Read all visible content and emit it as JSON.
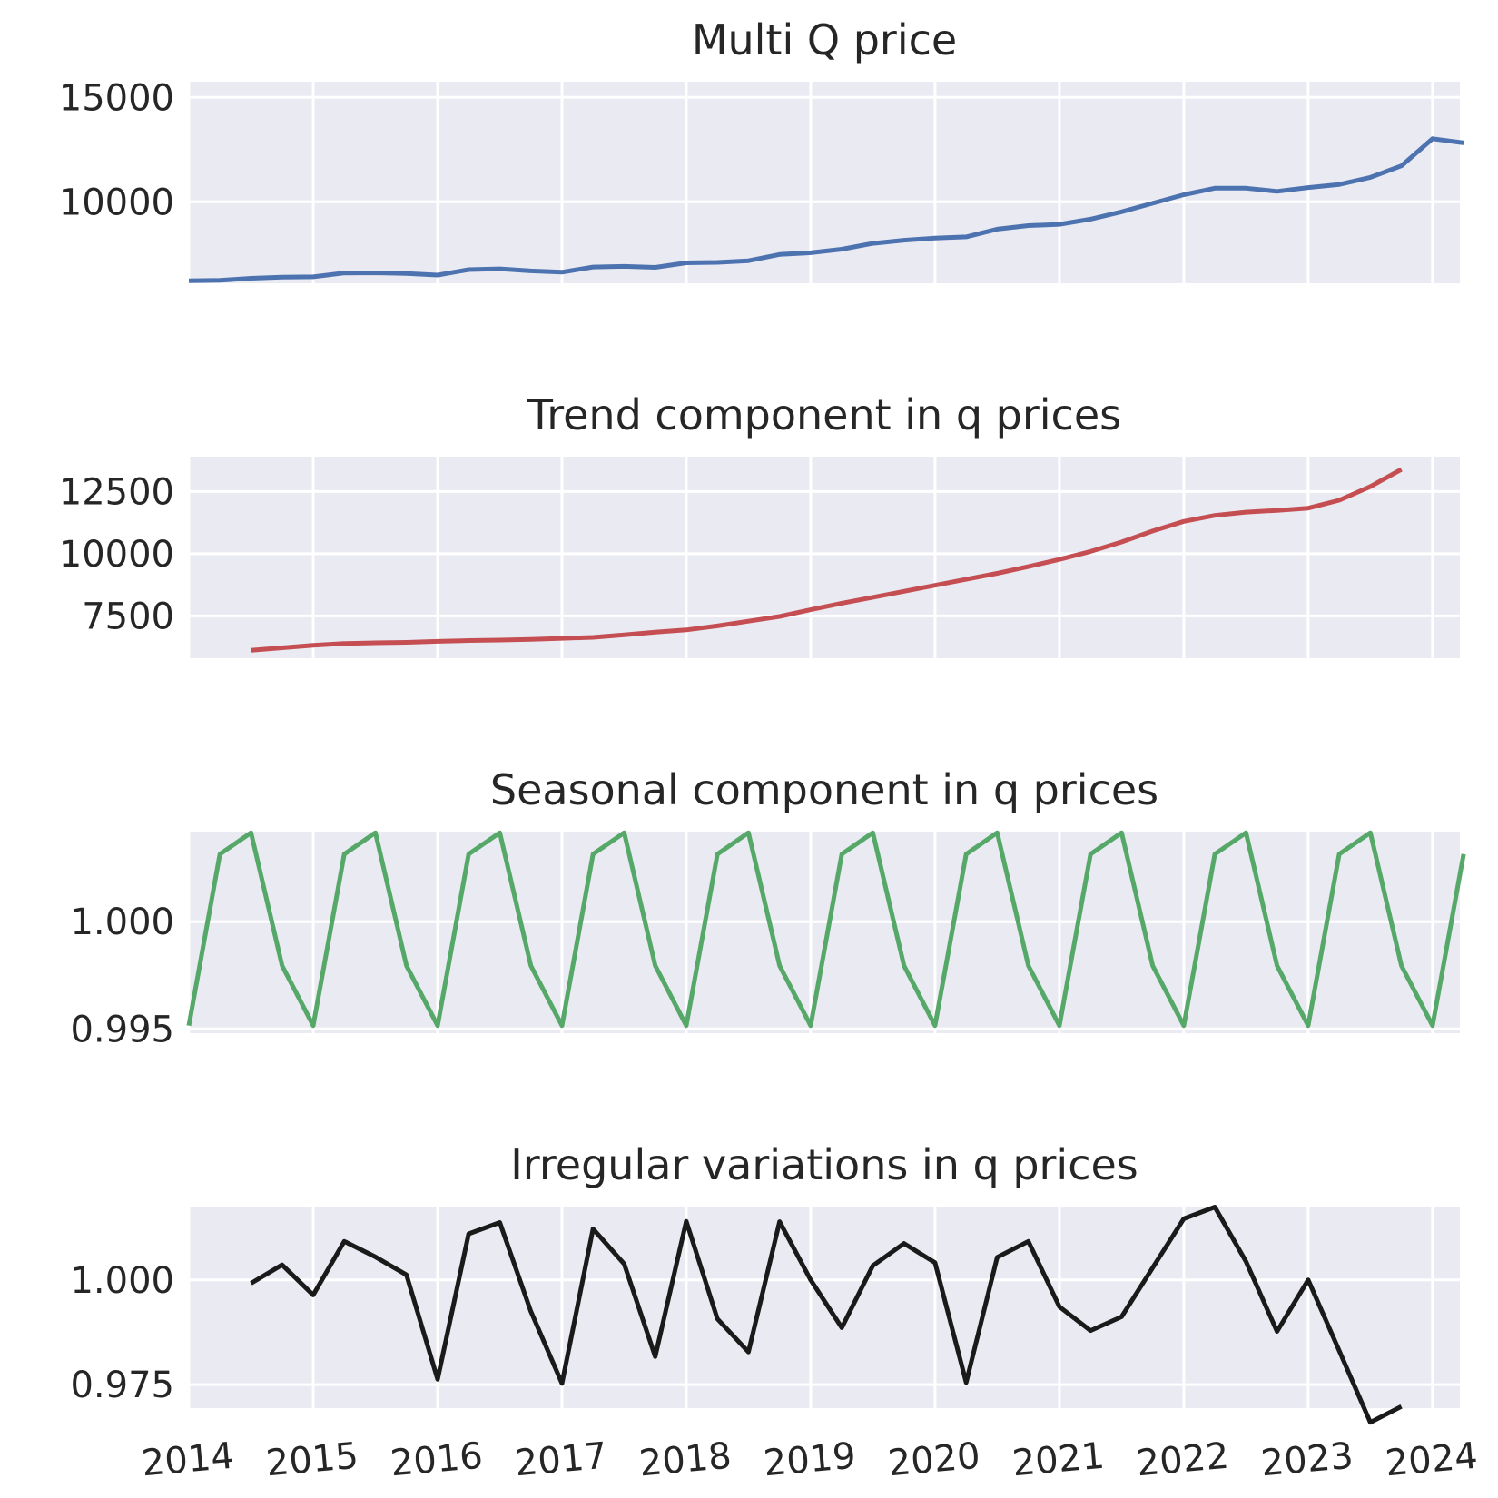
{
  "chart_data": [
    {
      "type": "line",
      "title": "Multi Q price",
      "xlabel": "",
      "ylabel": "",
      "xlim": [
        2014.0,
        2024.22
      ],
      "ylim": [
        6100,
        15750
      ],
      "yticks": [
        10000,
        15000
      ],
      "ytick_labels": [
        "10000",
        "15000"
      ],
      "grid": true,
      "color": "#4c72b0",
      "series": [
        {
          "x": [
            2014.0,
            2014.25,
            2014.5,
            2014.75,
            2015.0,
            2015.25,
            2015.5,
            2015.75,
            2016.0,
            2016.25,
            2016.5,
            2016.75,
            2017.0,
            2017.25,
            2017.5,
            2017.75,
            2018.0,
            2018.25,
            2018.5,
            2018.75,
            2019.0,
            2019.25,
            2019.5,
            2019.75,
            2020.0,
            2020.25,
            2020.5,
            2020.75,
            2021.0,
            2021.25,
            2021.5,
            2021.75,
            2022.0,
            2022.25,
            2022.5,
            2022.75,
            2023.0,
            2023.25,
            2023.5,
            2023.75,
            2024.0,
            2024.25
          ],
          "values": [
            6220,
            6240,
            6340,
            6390,
            6410,
            6590,
            6600,
            6570,
            6490,
            6750,
            6790,
            6690,
            6630,
            6880,
            6910,
            6860,
            7080,
            7100,
            7180,
            7480,
            7560,
            7730,
            8010,
            8160,
            8260,
            8320,
            8690,
            8860,
            8920,
            9170,
            9520,
            9930,
            10340,
            10650,
            10650,
            10500,
            10680,
            10830,
            11170,
            11720,
            13020,
            12820
          ]
        }
      ]
    },
    {
      "type": "line",
      "title": "Trend component in q prices",
      "xlabel": "",
      "ylabel": "",
      "xlim": [
        2014.0,
        2024.22
      ],
      "ylim": [
        5800,
        13900
      ],
      "yticks": [
        7500,
        10000,
        12500
      ],
      "ytick_labels": [
        "7500",
        "10000",
        "12500"
      ],
      "grid": true,
      "color": "#c44e52",
      "series": [
        {
          "x": [
            2014.5,
            2014.75,
            2015.0,
            2015.25,
            2015.5,
            2015.75,
            2016.0,
            2016.25,
            2016.5,
            2016.75,
            2017.0,
            2017.25,
            2017.5,
            2017.75,
            2018.0,
            2018.25,
            2018.5,
            2018.75,
            2019.0,
            2019.25,
            2019.5,
            2019.75,
            2020.0,
            2020.25,
            2020.5,
            2020.75,
            2021.0,
            2021.25,
            2021.5,
            2021.75,
            2022.0,
            2022.25,
            2022.5,
            2022.75,
            2023.0,
            2023.25,
            2023.5,
            2023.75
          ],
          "values": [
            6120,
            6220,
            6320,
            6390,
            6420,
            6440,
            6480,
            6510,
            6530,
            6560,
            6600,
            6640,
            6740,
            6850,
            6940,
            7100,
            7290,
            7480,
            7750,
            8010,
            8250,
            8490,
            8730,
            8970,
            9210,
            9480,
            9770,
            10090,
            10470,
            10910,
            11300,
            11540,
            11670,
            11740,
            11830,
            12150,
            12700,
            13390
          ]
        }
      ]
    },
    {
      "type": "line",
      "title": "Seasonal component in q prices",
      "xlabel": "",
      "ylabel": "",
      "xlim": [
        2014.0,
        2024.22
      ],
      "ylim": [
        0.9948,
        1.0042
      ],
      "yticks": [
        0.995,
        1.0
      ],
      "ytick_labels": [
        "0.995",
        "1.000"
      ],
      "grid": true,
      "color": "#55a868",
      "series": [
        {
          "x": [
            2014.0,
            2014.25,
            2014.5,
            2014.75,
            2015.0,
            2015.25,
            2015.5,
            2015.75,
            2016.0,
            2016.25,
            2016.5,
            2016.75,
            2017.0,
            2017.25,
            2017.5,
            2017.75,
            2018.0,
            2018.25,
            2018.5,
            2018.75,
            2019.0,
            2019.25,
            2019.5,
            2019.75,
            2020.0,
            2020.25,
            2020.5,
            2020.75,
            2021.0,
            2021.25,
            2021.5,
            2021.75,
            2022.0,
            2022.25,
            2022.5,
            2022.75,
            2023.0,
            2023.25,
            2023.5,
            2023.75,
            2024.0,
            2024.25
          ],
          "values": [
            0.99515,
            1.00315,
            1.00415,
            0.99795,
            0.99515,
            1.00315,
            1.00415,
            0.99795,
            0.99515,
            1.00315,
            1.00415,
            0.99795,
            0.99515,
            1.00315,
            1.00415,
            0.99795,
            0.99515,
            1.00315,
            1.00415,
            0.99795,
            0.99515,
            1.00315,
            1.00415,
            0.99795,
            0.99515,
            1.00315,
            1.00415,
            0.99795,
            0.99515,
            1.00315,
            1.00415,
            0.99795,
            0.99515,
            1.00315,
            1.00415,
            0.99795,
            0.99515,
            1.00315,
            1.00415,
            0.99795,
            0.99515,
            1.00315
          ]
        }
      ]
    },
    {
      "type": "line",
      "title": "Irregular variations in q prices",
      "xlabel": "",
      "ylabel": "",
      "xlim": [
        2014.0,
        2024.22
      ],
      "ylim": [
        0.9694,
        1.0175
      ],
      "yticks": [
        0.975,
        1.0
      ],
      "xticks": [
        2014,
        2015,
        2016,
        2017,
        2018,
        2019,
        2020,
        2021,
        2022,
        2023,
        2024
      ],
      "xtick_labels": [
        "2014",
        "2015",
        "2016",
        "2017",
        "2018",
        "2019",
        "2020",
        "2021",
        "2022",
        "2023",
        "2024"
      ],
      "ytick_labels": [
        "0.975",
        "1.000"
      ],
      "grid": true,
      "color": "#1a1a1a",
      "series": [
        {
          "x": [
            2014.5,
            2014.75,
            2015.0,
            2015.25,
            2015.5,
            2015.75,
            2016.0,
            2016.25,
            2016.5,
            2016.75,
            2017.0,
            2017.25,
            2017.5,
            2017.75,
            2018.0,
            2018.25,
            2018.5,
            2018.75,
            2019.0,
            2019.25,
            2019.5,
            2019.75,
            2020.0,
            2020.25,
            2020.5,
            2020.75,
            2021.0,
            2021.25,
            2021.5,
            2021.75,
            2022.0,
            2022.25,
            2022.5,
            2022.75,
            2023.0,
            2023.25,
            2023.5,
            2023.75
          ],
          "values": [
            0.9992,
            1.0036,
            0.9964,
            1.0092,
            1.0055,
            1.0012,
            0.9763,
            1.011,
            1.0137,
            0.9925,
            0.9753,
            1.0122,
            1.0038,
            0.9817,
            1.014,
            0.9907,
            0.9828,
            1.0139,
            1.0,
            0.9886,
            1.0034,
            1.0087,
            1.0041,
            0.9755,
            1.0054,
            1.0092,
            0.9936,
            0.9879,
            0.9912,
            1.0029,
            1.0146,
            1.0174,
            1.0044,
            0.9877,
            1.0,
            0.9831,
            0.966,
            0.9698
          ]
        }
      ]
    }
  ]
}
